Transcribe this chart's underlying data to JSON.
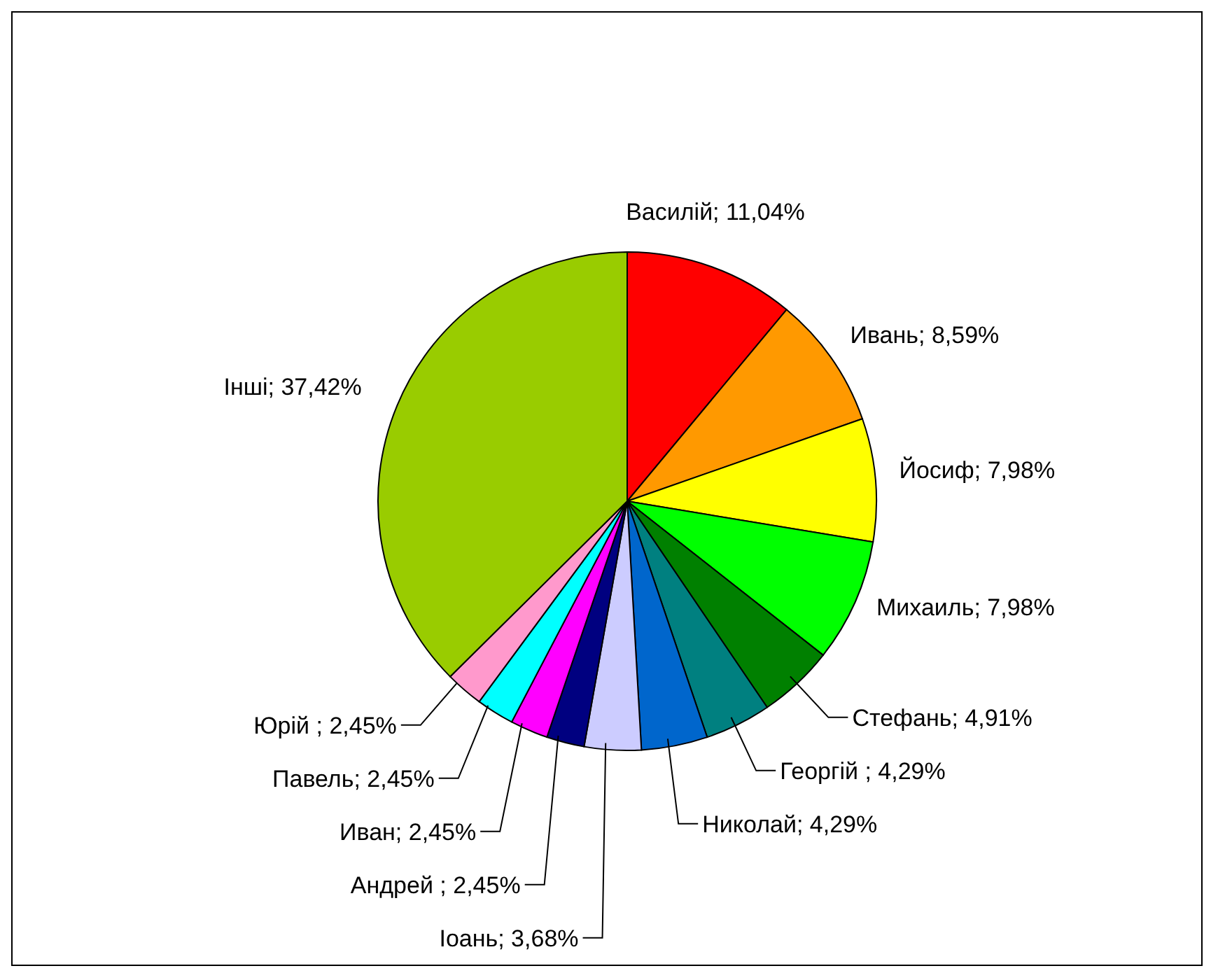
{
  "chart_data": {
    "type": "pie",
    "categories": [
      "Василій",
      "Ивань",
      "Йосиф",
      "Михаиль",
      "Стефань",
      "Георгій ",
      "Николай",
      "Іоань",
      "Андрей ",
      "Иван",
      "Павель",
      "Юрій ",
      "Інші"
    ],
    "values": [
      11.04,
      8.59,
      7.98,
      7.98,
      4.91,
      4.29,
      4.29,
      3.68,
      2.45,
      2.45,
      2.45,
      2.45,
      37.42
    ],
    "value_labels": [
      "11,04%",
      "8,59%",
      "7,98%",
      "7,98%",
      "4,91%",
      "4,29%",
      "4,29%",
      "3,68%",
      "2,45%",
      "2,45%",
      "2,45%",
      "2,45%",
      "37,42%"
    ],
    "colors": [
      "#ff0000",
      "#ff9900",
      "#ffff00",
      "#00ff00",
      "#008000",
      "#008080",
      "#0066cc",
      "#ccccff",
      "#000080",
      "#ff00ff",
      "#00ffff",
      "#ff99cc",
      "#99cc00"
    ],
    "data_labels": true,
    "legend": false
  }
}
